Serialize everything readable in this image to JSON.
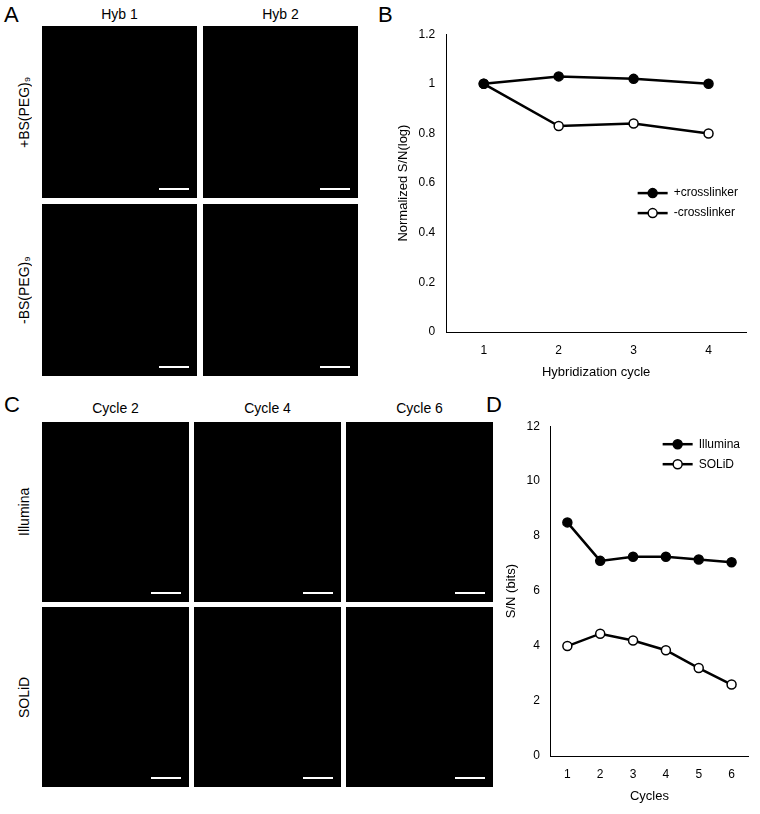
{
  "panel_labels": [
    "A",
    "B",
    "C",
    "D"
  ],
  "image_panels": [
    {
      "columns": [
        "Hyb 1",
        "Hyb 2"
      ],
      "rows": [
        "+BS(PEG)₉",
        "-BS(PEG)₉"
      ]
    },
    {
      "columns": [
        "Cycle 2",
        "Cycle 4",
        "Cycle 6"
      ],
      "rows": [
        "Illumina",
        "SOLiD"
      ]
    }
  ],
  "chart_data": [
    {
      "type": "line",
      "x_label": "Hybridization cycle",
      "y_label": "Normalized S/N(log)",
      "categories": [
        1,
        2,
        3,
        4
      ],
      "series": [
        {
          "name": "+crosslinker",
          "color": "#000000",
          "marker": "circle",
          "values": [
            1,
            1.03,
            1.02,
            1.0
          ]
        },
        {
          "name": "-crosslinker",
          "color": "#000000",
          "marker": "open_circle",
          "values": [
            1,
            0.83,
            0.84,
            0.8
          ]
        }
      ],
      "ylim": [
        0,
        1.2
      ],
      "yticks": [
        0,
        0.2,
        0.4,
        0.6,
        0.8,
        1,
        1.2
      ],
      "grid": false,
      "legend": "center right"
    },
    {
      "type": "line",
      "x_label": "Cycles",
      "y_label": "S/N (bits)",
      "categories": [
        1,
        2,
        3,
        4,
        5,
        6
      ],
      "series": [
        {
          "name": "Illumina",
          "color": "#000000",
          "marker": "circle",
          "values": [
            8.5,
            7.1,
            7.25,
            7.25,
            7.15,
            7.05
          ]
        },
        {
          "name": "SOLiD",
          "color": "#000000",
          "marker": "open_circle",
          "values": [
            4.0,
            4.45,
            4.2,
            3.85,
            3.2,
            2.6
          ]
        }
      ],
      "ylim": [
        0,
        12
      ],
      "yticks": [
        0,
        2,
        4,
        6,
        8,
        10,
        12
      ],
      "grid": false,
      "legend": "upper right"
    }
  ]
}
